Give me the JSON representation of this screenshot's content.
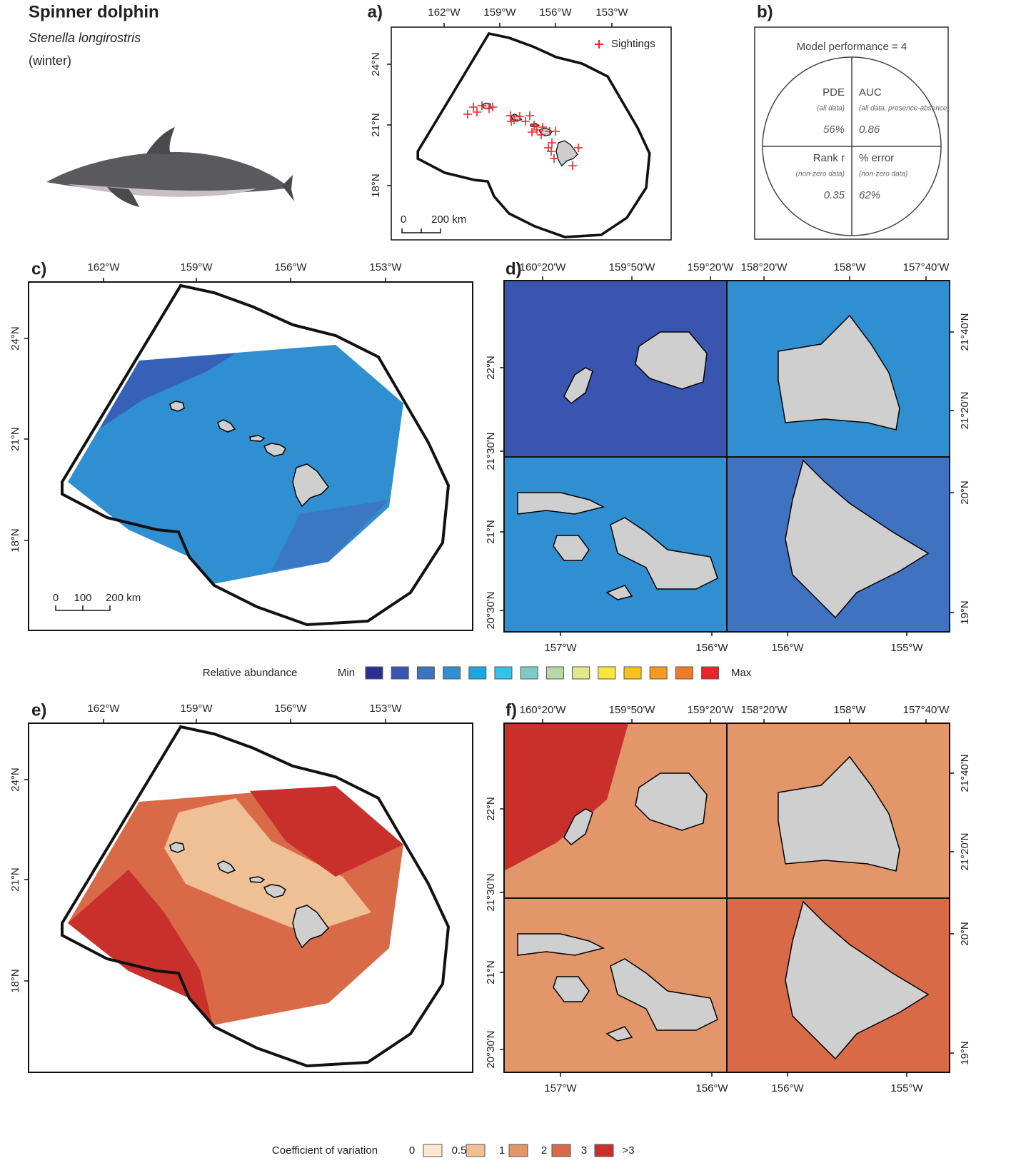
{
  "header": {
    "title": "Spinner dolphin",
    "species": "Stenella longirostris",
    "season": "(winter)"
  },
  "panel_a": {
    "label": "a)",
    "x_ticks": [
      "162°W",
      "159°W",
      "156°W",
      "153°W"
    ],
    "y_ticks": [
      "24°N",
      "21°N",
      "18°N"
    ],
    "legend": "Sightings",
    "scale": [
      "0",
      "200 km"
    ]
  },
  "panel_b": {
    "label": "b)",
    "title": "Model performance = 4",
    "cells": [
      {
        "name": "PDE",
        "note": "(all data)",
        "value": "56%"
      },
      {
        "name": "AUC",
        "note": "(all data, presence-absence)",
        "value": "0.86"
      },
      {
        "name": "Rank r",
        "note": "(non-zero data)",
        "value": "0.35"
      },
      {
        "name": "% error",
        "note": "(non-zero data)",
        "value": "62%"
      }
    ]
  },
  "panel_c": {
    "label": "c)",
    "x_ticks": [
      "162°W",
      "159°W",
      "156°W",
      "153°W"
    ],
    "y_ticks": [
      "24°N",
      "21°N",
      "18°N"
    ],
    "scale": [
      "0",
      "100",
      "200 km"
    ]
  },
  "panel_d": {
    "label": "d)",
    "top_ticks": [
      "160°20'W",
      "159°50'W",
      "159°20'W",
      "158°20'W",
      "158°W",
      "157°40'W"
    ],
    "bottom_ticks": [
      "157°W",
      "156°W",
      "156°W",
      "155°W"
    ],
    "left_ticks": [
      "22°N",
      "21°30'N",
      "21°N",
      "20°30'N"
    ],
    "right_ticks": [
      "21°40'N",
      "21°20'N",
      "20°N",
      "19°N"
    ]
  },
  "legend_abundance": {
    "title": "Relative abundance",
    "min": "Min",
    "max": "Max",
    "colors": [
      "#2b2f8f",
      "#3a55b0",
      "#3f72c0",
      "#2f8fd0",
      "#1ba8e0",
      "#33c2e8",
      "#7fcac8",
      "#b6d9a8",
      "#e2e88c",
      "#f6e83a",
      "#f8c21a",
      "#f59a20",
      "#ef7a2a",
      "#e8252a"
    ]
  },
  "panel_e": {
    "label": "e)",
    "x_ticks": [
      "162°W",
      "159°W",
      "156°W",
      "153°W"
    ],
    "y_ticks": [
      "24°N",
      "21°N",
      "18°N"
    ]
  },
  "panel_f": {
    "label": "f)",
    "top_ticks": [
      "160°20'W",
      "159°50'W",
      "159°20'W",
      "158°20'W",
      "158°W",
      "157°40'W"
    ],
    "bottom_ticks": [
      "157°W",
      "156°W",
      "156°W",
      "155°W"
    ],
    "left_ticks": [
      "22°N",
      "21°30'N",
      "21°N",
      "20°30'N"
    ],
    "right_ticks": [
      "21°40'N",
      "21°20'N",
      "20°N",
      "19°N"
    ]
  },
  "legend_cv": {
    "title": "Coefficient of variation",
    "labels": [
      "0",
      "0.5",
      "1",
      "2",
      "3",
      ">3"
    ],
    "colors": [
      "#fbe9cf",
      "#efbf95",
      "#e2966a",
      "#d86a48",
      "#c9302c"
    ]
  }
}
